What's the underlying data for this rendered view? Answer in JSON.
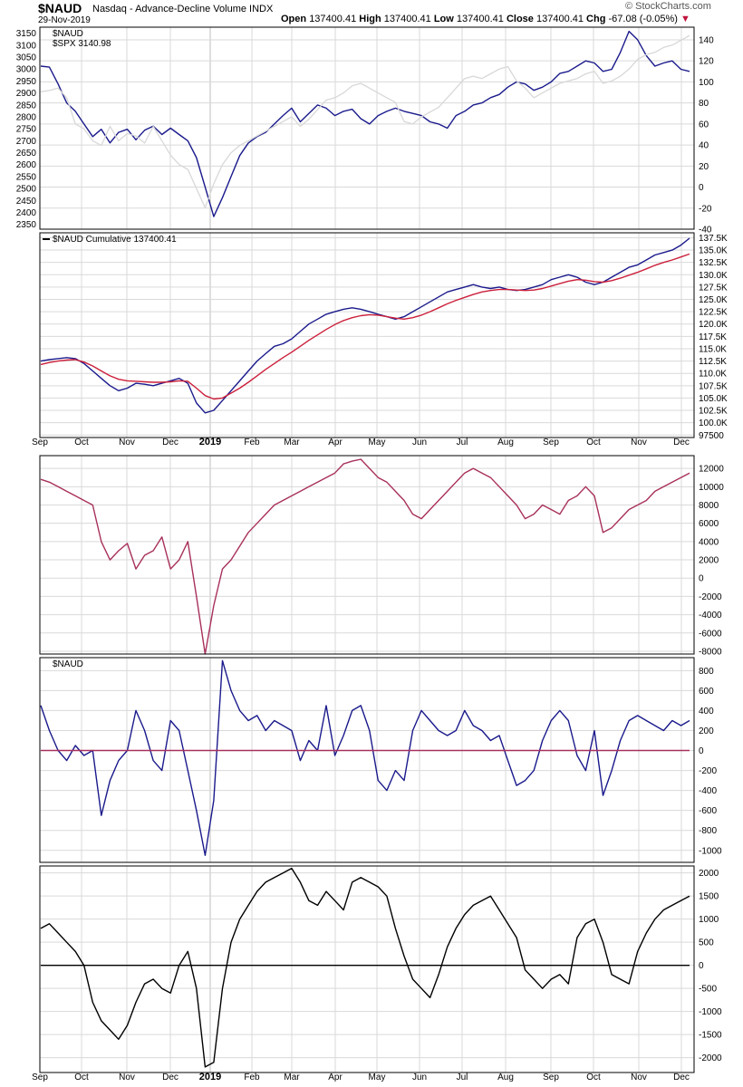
{
  "header": {
    "symbol": "$NAUD",
    "subtitle": "Nasdaq - Advance-Decline Volume INDX",
    "date": "29-Nov-2019",
    "open_label": "Open",
    "open": "137400.41",
    "high_label": "High",
    "high": "137400.41",
    "low_label": "Low",
    "low": "137400.41",
    "close_label": "Close",
    "close": "137400.41",
    "chg_label": "Chg",
    "chg": "-67.08 (-0.05%)",
    "brand": "© StockCharts.com"
  },
  "colors": {
    "navy": "#1a1a8c",
    "grey": "#d8d8d8",
    "red": "#cc1f3a",
    "maroon": "#a8305c",
    "black": "#000000",
    "grid": "#d9d9d9"
  },
  "x_axis": {
    "months": [
      {
        "label": "Sep",
        "bold": false
      },
      {
        "label": "Oct",
        "bold": false
      },
      {
        "label": "Nov",
        "bold": false
      },
      {
        "label": "Dec",
        "bold": false
      },
      {
        "label": "2019",
        "bold": true
      },
      {
        "label": "Feb",
        "bold": false
      },
      {
        "label": "Mar",
        "bold": false
      },
      {
        "label": "Apr",
        "bold": false
      },
      {
        "label": "May",
        "bold": false
      },
      {
        "label": "Jun",
        "bold": false
      },
      {
        "label": "Jul",
        "bold": false
      },
      {
        "label": "Aug",
        "bold": false
      },
      {
        "label": "Sep",
        "bold": false
      },
      {
        "label": "Oct",
        "bold": false
      },
      {
        "label": "Nov",
        "bold": false
      },
      {
        "label": "Dec",
        "bold": false
      }
    ]
  },
  "chart_data": [
    {
      "type": "line",
      "legend": [
        "$NAUD",
        "$SPX 3140.98"
      ],
      "left_axis_ticks": [
        "3150",
        "3100",
        "3050",
        "3000",
        "2950",
        "2900",
        "2850",
        "2800",
        "2750",
        "2700",
        "2650",
        "2600",
        "2550",
        "2500",
        "2450",
        "2400",
        "2350"
      ],
      "right_axis_ticks": [
        "140",
        "120",
        "100",
        "80",
        "60",
        "40",
        "20",
        "0",
        "-20",
        "-40"
      ],
      "ylim_left": [
        2330,
        3175
      ],
      "ylim_right": [
        -40,
        152
      ],
      "series": [
        {
          "name": "$NAUD",
          "axis": "right",
          "color": "navy",
          "values": [
            115,
            114,
            98,
            80,
            72,
            60,
            48,
            55,
            42,
            52,
            55,
            45,
            54,
            58,
            50,
            56,
            50,
            44,
            28,
            0,
            -28,
            -10,
            10,
            30,
            42,
            48,
            52,
            60,
            68,
            75,
            62,
            70,
            78,
            75,
            68,
            72,
            74,
            65,
            60,
            68,
            72,
            75,
            72,
            70,
            68,
            62,
            60,
            56,
            68,
            72,
            78,
            80,
            85,
            88,
            95,
            100,
            98,
            92,
            95,
            100,
            108,
            110,
            115,
            120,
            118,
            110,
            112,
            128,
            148,
            140,
            125,
            115,
            118,
            120,
            112,
            110
          ]
        },
        {
          "name": "$SPX 3140.98",
          "axis": "left",
          "color": "grey",
          "values": [
            2905,
            2910,
            2920,
            2880,
            2770,
            2750,
            2700,
            2680,
            2760,
            2700,
            2730,
            2720,
            2690,
            2760,
            2700,
            2640,
            2600,
            2580,
            2500,
            2420,
            2520,
            2600,
            2650,
            2680,
            2700,
            2720,
            2740,
            2760,
            2780,
            2800,
            2760,
            2790,
            2830,
            2870,
            2880,
            2900,
            2930,
            2940,
            2920,
            2900,
            2880,
            2860,
            2780,
            2770,
            2800,
            2820,
            2840,
            2880,
            2920,
            2960,
            2970,
            2960,
            2980,
            3000,
            3010,
            2950,
            2920,
            2880,
            2900,
            2920,
            2940,
            2950,
            2960,
            2980,
            2990,
            2940,
            2950,
            2970,
            3000,
            3040,
            3060,
            3070,
            3090,
            3100,
            3120,
            3140
          ]
        }
      ]
    },
    {
      "type": "line",
      "legend": [
        "$NAUD Cumulative 137400.41"
      ],
      "right_axis_ticks": [
        "137.5K",
        "135.0K",
        "132.5K",
        "130.0K",
        "127.5K",
        "125.0K",
        "122.5K",
        "120.0K",
        "117.5K",
        "115.0K",
        "112.5K",
        "110.0K",
        "107.5K",
        "105.0K",
        "102.5K",
        "100.0K",
        "97500"
      ],
      "ylim_right": [
        97000,
        138500
      ],
      "series": [
        {
          "name": "$NAUD Cumulative 137400.41",
          "color": "navy",
          "values": [
            112500,
            112800,
            113000,
            113200,
            113000,
            112000,
            110500,
            109000,
            107500,
            106500,
            107000,
            108000,
            107800,
            107500,
            108000,
            108500,
            109000,
            108000,
            104000,
            102000,
            102500,
            104500,
            106500,
            108500,
            110500,
            112500,
            114000,
            115500,
            116000,
            117000,
            118500,
            120000,
            121000,
            122000,
            122500,
            123000,
            123300,
            123000,
            122500,
            122000,
            121500,
            121000,
            121500,
            122500,
            123500,
            124500,
            125500,
            126500,
            127000,
            127500,
            128000,
            127500,
            127200,
            127500,
            127000,
            126800,
            127000,
            127500,
            128000,
            129000,
            129500,
            130000,
            129500,
            128500,
            128000,
            128500,
            129500,
            130500,
            131500,
            132000,
            133000,
            134000,
            134500,
            135000,
            136000,
            137400
          ]
        },
        {
          "color": "red",
          "values": [
            111800,
            112200,
            112500,
            112700,
            112800,
            112300,
            111500,
            110500,
            109500,
            108800,
            108500,
            108400,
            108300,
            108200,
            108200,
            108300,
            108500,
            108400,
            107000,
            105500,
            104800,
            105000,
            106000,
            107000,
            108200,
            109500,
            110800,
            112000,
            113200,
            114300,
            115500,
            116700,
            117800,
            118900,
            119900,
            120700,
            121300,
            121700,
            121900,
            121800,
            121500,
            121200,
            121000,
            121300,
            121800,
            122500,
            123300,
            124100,
            124800,
            125400,
            126000,
            126500,
            126800,
            127000,
            127000,
            126900,
            126800,
            126900,
            127200,
            127700,
            128200,
            128700,
            129000,
            128900,
            128600,
            128500,
            128800,
            129300,
            129900,
            130500,
            131200,
            131900,
            132500,
            133000,
            133600,
            134200
          ]
        }
      ]
    },
    {
      "type": "line",
      "right_axis_ticks": [
        "12000",
        "10000",
        "8000",
        "6000",
        "4000",
        "2000",
        "0",
        "-2000",
        "-4000",
        "-6000",
        "-8000"
      ],
      "ylim_right": [
        -8300,
        13400
      ],
      "series": [
        {
          "color": "maroon",
          "values": [
            10800,
            10500,
            10000,
            9500,
            9000,
            8500,
            8000,
            4000,
            2000,
            3000,
            3800,
            1000,
            2500,
            3000,
            4500,
            1000,
            2000,
            4000,
            -2000,
            -8300,
            -3000,
            1000,
            2000,
            3500,
            5000,
            6000,
            7000,
            8000,
            8500,
            9000,
            9500,
            10000,
            10500,
            11000,
            11500,
            12500,
            12800,
            13000,
            12000,
            11000,
            10500,
            9500,
            8500,
            7000,
            6500,
            7500,
            8500,
            9500,
            10500,
            11500,
            12000,
            11500,
            11000,
            10000,
            9000,
            8000,
            6500,
            7000,
            8000,
            7500,
            7000,
            8500,
            9000,
            10000,
            9000,
            5000,
            5500,
            6500,
            7500,
            8000,
            8500,
            9500,
            10000,
            10500,
            11000,
            11500
          ]
        }
      ]
    },
    {
      "type": "line",
      "legend": [
        "$NAUD"
      ],
      "right_axis_ticks": [
        "800",
        "600",
        "400",
        "200",
        "0",
        "-200",
        "-400",
        "-600",
        "-800",
        "-1000"
      ],
      "ylim_right": [
        -1120,
        930
      ],
      "series": [
        {
          "name": "$NAUD",
          "color": "navy",
          "values": [
            450,
            200,
            0,
            -100,
            50,
            -50,
            0,
            -650,
            -300,
            -100,
            0,
            400,
            200,
            -100,
            -200,
            300,
            200,
            -200,
            -600,
            -1050,
            -500,
            900,
            600,
            400,
            300,
            350,
            200,
            300,
            250,
            200,
            -100,
            100,
            0,
            450,
            -50,
            150,
            400,
            450,
            200,
            -300,
            -400,
            -200,
            -300,
            200,
            400,
            300,
            200,
            150,
            200,
            400,
            250,
            200,
            100,
            150,
            -100,
            -350,
            -300,
            -200,
            100,
            300,
            400,
            300,
            -50,
            -200,
            200,
            -450,
            -200,
            100,
            300,
            350,
            300,
            250,
            200,
            300,
            250,
            300
          ]
        },
        {
          "color": "maroon",
          "values": [
            0,
            0
          ]
        }
      ]
    },
    {
      "type": "line",
      "right_axis_ticks": [
        "2000",
        "1500",
        "1000",
        "500",
        "0",
        "-500",
        "-1000",
        "-1500",
        "-2000"
      ],
      "ylim_right": [
        -2320,
        2150
      ],
      "series": [
        {
          "color": "black",
          "values": [
            800,
            900,
            700,
            500,
            300,
            0,
            -800,
            -1200,
            -1400,
            -1600,
            -1300,
            -800,
            -400,
            -300,
            -500,
            -600,
            0,
            300,
            -500,
            -2200,
            -2100,
            -500,
            500,
            1000,
            1300,
            1600,
            1800,
            1900,
            2000,
            2100,
            1800,
            1400,
            1300,
            1600,
            1400,
            1200,
            1800,
            1900,
            1800,
            1700,
            1500,
            800,
            200,
            -300,
            -500,
            -700,
            -200,
            400,
            800,
            1100,
            1300,
            1400,
            1500,
            1200,
            900,
            600,
            -100,
            -300,
            -500,
            -300,
            -200,
            -400,
            600,
            900,
            1000,
            500,
            -200,
            -300,
            -400,
            300,
            700,
            1000,
            1200,
            1300,
            1400,
            1500
          ]
        },
        {
          "color": "black",
          "values": [
            0,
            0
          ]
        }
      ]
    }
  ]
}
